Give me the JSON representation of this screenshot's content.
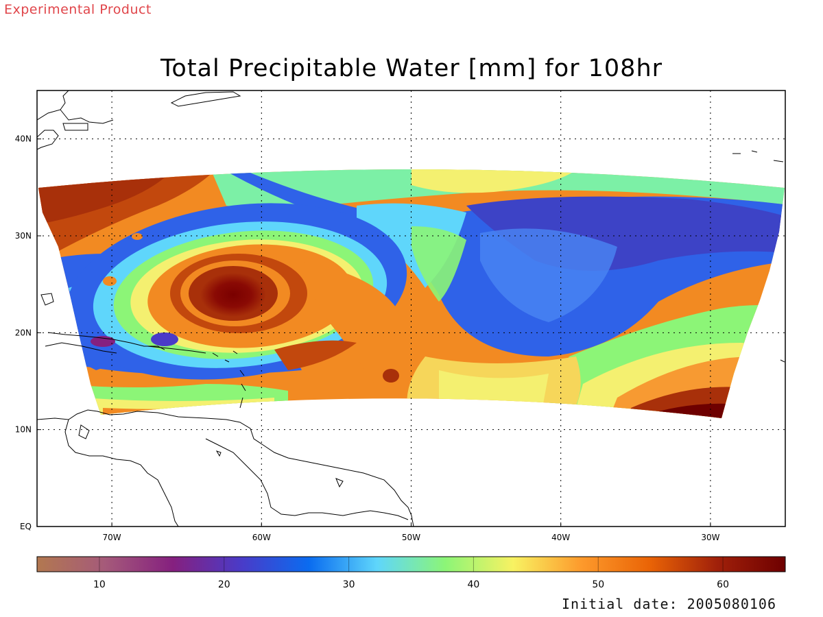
{
  "header": {
    "product_label": "Experimental Product",
    "title": "Total Precipitable Water [mm] for 108hr"
  },
  "footer": {
    "initial_date": "Initial date: 2005080106"
  },
  "map": {
    "lon_range": [
      -75,
      -25
    ],
    "lat_range": [
      0,
      45
    ],
    "lon_ticks": [
      {
        "value": -70,
        "label": "70W"
      },
      {
        "value": -60,
        "label": "60W"
      },
      {
        "value": -50,
        "label": "50W"
      },
      {
        "value": -40,
        "label": "40W"
      },
      {
        "value": -30,
        "label": "30W"
      }
    ],
    "lat_ticks": [
      {
        "value": 0,
        "label": "EQ"
      },
      {
        "value": 10,
        "label": "10N"
      },
      {
        "value": 20,
        "label": "20N"
      },
      {
        "value": 30,
        "label": "30N"
      },
      {
        "value": 40,
        "label": "40N"
      }
    ],
    "grid": "dotted",
    "storm_center": {
      "lon": -62,
      "lat": 24
    }
  },
  "colorbar": {
    "min": 5,
    "max": 65,
    "ticks": [
      {
        "value": 10,
        "label": "10"
      },
      {
        "value": 20,
        "label": "20"
      },
      {
        "value": 30,
        "label": "30"
      },
      {
        "value": 40,
        "label": "40"
      },
      {
        "value": 50,
        "label": "50"
      },
      {
        "value": 60,
        "label": "60"
      }
    ],
    "colors": [
      "#b27850",
      "#a55a7a",
      "#85207f",
      "#4a3bc8",
      "#0a6cf0",
      "#5fd6fb",
      "#8cf577",
      "#f8f262",
      "#fd9a2c",
      "#ea6406",
      "#a0200a",
      "#6e0000"
    ]
  }
}
